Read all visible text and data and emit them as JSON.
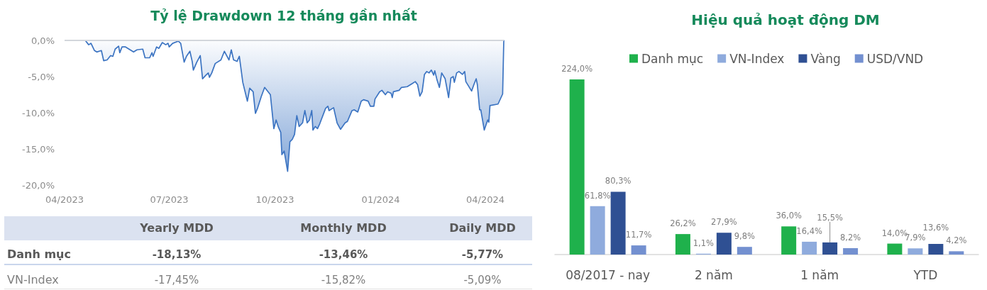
{
  "chart_data": [
    {
      "type": "area",
      "title": "Tỷ lệ Drawdown 12 tháng gần nhất",
      "color": "#3c74c2",
      "marker": "none",
      "line_style": "solid",
      "x": [
        "2023-04-19",
        "2023-04-22",
        "2023-04-24",
        "2023-04-27",
        "2023-04-29",
        "2023-05-03",
        "2023-05-05",
        "2023-05-08",
        "2023-05-11",
        "2023-05-13",
        "2023-05-15",
        "2023-05-18",
        "2023-05-19",
        "2023-05-21",
        "2023-05-24",
        "2023-05-31",
        "2023-06-03",
        "2023-06-08",
        "2023-06-10",
        "2023-06-14",
        "2023-06-16",
        "2023-06-17",
        "2023-06-20",
        "2023-06-22",
        "2023-06-25",
        "2023-06-28",
        "2023-06-30",
        "2023-07-01",
        "2023-07-04",
        "2023-07-09",
        "2023-07-11",
        "2023-07-14",
        "2023-07-16",
        "2023-07-19",
        "2023-07-21",
        "2023-07-22",
        "2023-07-25",
        "2023-07-28",
        "2023-07-30",
        "2023-08-02",
        "2023-08-04",
        "2023-08-05",
        "2023-08-07",
        "2023-08-10",
        "2023-08-15",
        "2023-08-18",
        "2023-08-22",
        "2023-08-24",
        "2023-08-26",
        "2023-08-29",
        "2023-08-31",
        "2023-09-03",
        "2023-09-07",
        "2023-09-09",
        "2023-09-12",
        "2023-09-14",
        "2023-09-16",
        "2023-09-19",
        "2023-09-22",
        "2023-09-27",
        "2023-09-30",
        "2023-10-02",
        "2023-10-04",
        "2023-10-06",
        "2023-10-07",
        "2023-10-09",
        "2023-10-12",
        "2023-10-14",
        "2023-10-16",
        "2023-10-18",
        "2023-10-20",
        "2023-10-22",
        "2023-10-25",
        "2023-10-27",
        "2023-10-29",
        "2023-10-31",
        "2023-11-02",
        "2023-11-03",
        "2023-11-05",
        "2023-11-07",
        "2023-11-09",
        "2023-11-14",
        "2023-11-16",
        "2023-11-17",
        "2023-11-21",
        "2023-11-24",
        "2023-11-27",
        "2023-12-01",
        "2023-12-03",
        "2023-12-07",
        "2023-12-09",
        "2023-12-12",
        "2023-12-15",
        "2023-12-17",
        "2023-12-21",
        "2023-12-23",
        "2023-12-26",
        "2023-12-27",
        "2023-12-31",
        "2024-01-02",
        "2024-01-05",
        "2024-01-07",
        "2024-01-10",
        "2024-01-11",
        "2024-01-12",
        "2024-01-17",
        "2024-01-19",
        "2024-01-24",
        "2024-01-28",
        "2024-01-31",
        "2024-02-02",
        "2024-02-04",
        "2024-02-06",
        "2024-02-08",
        "2024-02-10",
        "2024-02-12",
        "2024-02-14",
        "2024-02-16",
        "2024-02-17",
        "2024-02-19",
        "2024-02-21",
        "2024-02-23",
        "2024-02-26",
        "2024-02-29",
        "2024-03-02",
        "2024-03-04",
        "2024-03-05",
        "2024-03-07",
        "2024-03-09",
        "2024-03-12",
        "2024-03-14",
        "2024-03-15",
        "2024-03-20",
        "2024-03-22",
        "2024-03-24",
        "2024-03-25",
        "2024-03-27",
        "2024-03-28",
        "2024-03-31",
        "2024-04-03",
        "2024-04-04",
        "2024-04-05",
        "2024-04-12",
        "2024-04-16",
        "2024-04-17"
      ],
      "values": [
        0.0,
        -0.6,
        -0.4,
        -1.4,
        -1.6,
        -1.4,
        -2.8,
        -2.7,
        -2.1,
        -2.2,
        -1.2,
        -0.8,
        -1.7,
        -0.9,
        -0.9,
        -1.6,
        -1.3,
        -1.2,
        -2.4,
        -2.4,
        -1.7,
        -2.2,
        -0.9,
        -1.1,
        -0.3,
        -0.6,
        -0.4,
        -0.9,
        -0.4,
        -0.1,
        -0.4,
        -3.0,
        -2.2,
        -1.5,
        -2.9,
        -4.1,
        -3.0,
        -2.1,
        -5.3,
        -4.8,
        -4.5,
        -5.1,
        -4.5,
        -3.2,
        -2.7,
        -1.5,
        -2.7,
        -1.3,
        -2.7,
        -2.9,
        -2.2,
        -5.8,
        -8.4,
        -6.6,
        -7.1,
        -10.1,
        -9.3,
        -7.8,
        -6.5,
        -7.5,
        -12.2,
        -11.0,
        -12.0,
        -12.7,
        -15.8,
        -15.3,
        -18.1,
        -14.0,
        -13.7,
        -13.0,
        -10.4,
        -11.9,
        -11.4,
        -9.7,
        -11.4,
        -11.0,
        -9.7,
        -12.4,
        -11.9,
        -12.2,
        -11.5,
        -9.4,
        -9.1,
        -9.7,
        -9.3,
        -11.4,
        -12.3,
        -11.4,
        -11.2,
        -9.7,
        -9.6,
        -9.9,
        -8.4,
        -8.2,
        -8.4,
        -9.1,
        -9.1,
        -8.1,
        -7.1,
        -6.9,
        -7.5,
        -7.1,
        -7.3,
        -7.9,
        -7.1,
        -6.9,
        -6.5,
        -6.4,
        -6.0,
        -5.7,
        -6.1,
        -7.7,
        -7.1,
        -4.7,
        -4.3,
        -4.5,
        -4.1,
        -4.8,
        -4.2,
        -5.5,
        -6.5,
        -4.5,
        -5.3,
        -7.9,
        -5.2,
        -5.0,
        -5.8,
        -4.5,
        -4.3,
        -4.7,
        -4.3,
        -5.7,
        -7.0,
        -6.1,
        -5.3,
        -6.1,
        -9.6,
        -9.6,
        -12.4,
        -11.0,
        -11.3,
        -9.0,
        -8.8,
        -7.4,
        0.0
      ],
      "xlim": [
        "2023-04-01",
        "2024-04-17"
      ],
      "xticks": [
        {
          "value": "2023-04-01",
          "label": "04/2023"
        },
        {
          "value": "2023-07-01",
          "label": "07/2023"
        },
        {
          "value": "2023-10-01",
          "label": "10/2023"
        },
        {
          "value": "2024-01-01",
          "label": "01/2024"
        },
        {
          "value": "2024-04-01",
          "label": "04/2024"
        }
      ],
      "ylim": [
        -20,
        0
      ],
      "yticks": [
        {
          "value": -20,
          "label": "-20,0%"
        },
        {
          "value": -15,
          "label": "-15,0%"
        },
        {
          "value": -10,
          "label": "-10,0%"
        },
        {
          "value": -5,
          "label": "-5,0%"
        },
        {
          "value": 0,
          "label": "0,0%"
        }
      ],
      "ref_lines": [
        {
          "axis": "y",
          "value": 0,
          "color": "#d3d6dc"
        }
      ]
    },
    {
      "type": "other",
      "categories": [
        "Yearly MDD",
        "Monthly MDD",
        "Daily MDD"
      ],
      "y_categories": [
        "Danh mục",
        "VN-Index"
      ],
      "cell_labels": [
        [
          "-18,13%",
          "-13,46%",
          "-5,77%"
        ],
        [
          "-17,45%",
          "-15,82%",
          "-5,09%"
        ]
      ]
    },
    {
      "type": "bar",
      "title": "Hiệu quả hoạt động DM",
      "categories": [
        "08/2017 - nay",
        "2 năm",
        "1 năm",
        "YTD"
      ],
      "legend": "top",
      "tick_labels": "x",
      "series": [
        {
          "name": "Danh mục",
          "color": "#1fb14c",
          "values": [
            224.0,
            26.2,
            36.0,
            14.0
          ],
          "value_labels": [
            "224,0%",
            "26,2%",
            "36,0%",
            "14,0%"
          ]
        },
        {
          "name": "VN-Index",
          "color": "#8fabdd",
          "values": [
            61.8,
            1.1,
            16.4,
            7.9
          ],
          "value_labels": [
            "61,8%",
            "1,1%",
            "16,4%",
            "7,9%"
          ]
        },
        {
          "name": "Vàng",
          "color": "#2f5093",
          "values": [
            80.3,
            27.9,
            15.5,
            13.6
          ],
          "value_labels": [
            "80,3%",
            "27,9%",
            "15,5%",
            "13,6%"
          ]
        },
        {
          "name": "USD/VND",
          "color": "#7390d0",
          "values": [
            11.7,
            9.8,
            8.2,
            4.2
          ],
          "value_labels": [
            "11,7%",
            "9,8%",
            "8,2%",
            "4,2%"
          ]
        }
      ]
    }
  ]
}
